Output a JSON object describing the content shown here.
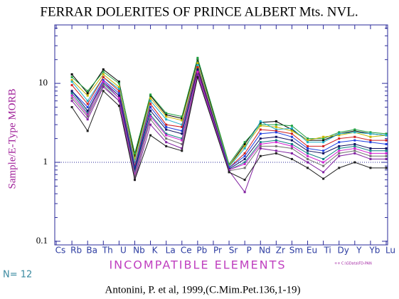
{
  "chart_data": {
    "type": "line",
    "title": "FERRAR DOLERITES OF PRINCE ALBERT Mts. NVL.",
    "y_label": "Sample/E-Type MORB",
    "x_label": "INCOMPATIBLE ELEMENTS",
    "n_label": "N= 12",
    "citation": "Antonini, P. et al, 1999,(C.Mim.Pet.136,1-19)",
    "note": "++ C:\\GData\\FD-PAN",
    "log_y": true,
    "connect_gaps": true,
    "ylim": [
      0.09,
      55
    ],
    "yticks": [
      0.1,
      1,
      10
    ],
    "reference_line": 1,
    "categories": [
      "Cs",
      "Rb",
      "Ba",
      "Th",
      "U",
      "Nb",
      "K",
      "La",
      "Ce",
      "Pb",
      "Pr",
      "Sr",
      "P",
      "Nd",
      "Zr",
      "Sm",
      "Eu",
      "Ti",
      "Dy",
      "Y",
      "Yb",
      "Lu"
    ],
    "series": [
      {
        "color": "#000000",
        "values": [
          null,
          13,
          7.5,
          15,
          10.5,
          1.2,
          7,
          4,
          3.6,
          20,
          null,
          0.9,
          1.7,
          3.2,
          3.3,
          2.6,
          1.9,
          1.9,
          2.3,
          2.5,
          2.3,
          2.2
        ]
      },
      {
        "color": "#20a040",
        "values": [
          null,
          12,
          8,
          14,
          10,
          1.3,
          7.2,
          4.2,
          3.8,
          21,
          null,
          0.95,
          1.8,
          3.0,
          3.0,
          2.9,
          2.0,
          2.0,
          2.4,
          2.6,
          2.4,
          2.3
        ]
      },
      {
        "color": "#c8b400",
        "values": [
          null,
          11,
          7,
          13,
          9,
          1.1,
          6.5,
          3.8,
          3.4,
          18,
          null,
          0.9,
          1.6,
          2.9,
          2.8,
          2.5,
          1.9,
          2.1,
          2.2,
          2.4,
          2.1,
          2.2
        ]
      },
      {
        "color": "#20b0c8",
        "values": [
          null,
          10.5,
          6,
          12,
          8.5,
          1.0,
          6,
          3.5,
          3.0,
          17,
          null,
          0.88,
          1.5,
          3.3,
          2.6,
          2.7,
          1.8,
          1.8,
          2.3,
          2.4,
          2.3,
          2.2
        ]
      },
      {
        "color": "#d02020",
        "values": [
          null,
          9.5,
          5.5,
          12,
          8,
          0.9,
          5.5,
          3.0,
          2.8,
          16,
          null,
          0.85,
          1.3,
          2.6,
          2.5,
          2.3,
          1.6,
          1.6,
          2.0,
          2.1,
          1.9,
          1.9
        ]
      },
      {
        "color": "#2040e0",
        "values": [
          null,
          8,
          5,
          11,
          7.5,
          0.85,
          5,
          2.8,
          2.5,
          15,
          null,
          0.85,
          1.2,
          2.3,
          2.4,
          2.1,
          1.5,
          1.4,
          1.8,
          1.9,
          1.8,
          1.7
        ]
      },
      {
        "color": "#101060",
        "values": [
          null,
          8,
          4.5,
          10.5,
          7,
          0.8,
          4.5,
          2.6,
          2.3,
          15,
          null,
          0.82,
          1.1,
          2.0,
          2.1,
          1.9,
          1.4,
          1.3,
          1.6,
          1.7,
          1.5,
          1.5
        ]
      },
      {
        "color": "#108080",
        "values": [
          null,
          7.5,
          4.2,
          10,
          6.5,
          0.75,
          4,
          2.3,
          2.0,
          14,
          null,
          0.8,
          1.0,
          1.8,
          1.9,
          1.7,
          1.3,
          1.1,
          1.5,
          1.6,
          1.4,
          1.4
        ]
      },
      {
        "color": "#d020d0",
        "values": [
          null,
          7,
          4,
          10.5,
          6.5,
          0.7,
          3.8,
          2.2,
          1.9,
          14,
          null,
          0.8,
          0.95,
          1.7,
          1.8,
          1.6,
          1.2,
          1.0,
          1.4,
          1.5,
          1.3,
          1.3
        ]
      },
      {
        "color": "#707070",
        "values": [
          null,
          6.5,
          3.8,
          9.5,
          6,
          0.65,
          3.5,
          2.0,
          1.7,
          13,
          null,
          0.78,
          0.85,
          1.6,
          1.6,
          1.5,
          1.1,
          0.9,
          1.3,
          1.4,
          1.2,
          1.2
        ]
      },
      {
        "color": "#8020a0",
        "values": [
          null,
          6,
          3.5,
          9,
          6,
          0.6,
          3,
          1.8,
          1.5,
          13,
          null,
          0.78,
          0.42,
          1.5,
          1.4,
          1.3,
          1.0,
          0.75,
          1.2,
          1.3,
          1.1,
          1.1
        ]
      },
      {
        "color": "#202020",
        "values": [
          null,
          5,
          2.5,
          8,
          5.2,
          0.6,
          2.2,
          1.6,
          1.4,
          12,
          null,
          0.75,
          0.6,
          1.2,
          1.3,
          1.1,
          0.85,
          0.62,
          0.85,
          1.0,
          0.85,
          0.85
        ]
      }
    ]
  }
}
